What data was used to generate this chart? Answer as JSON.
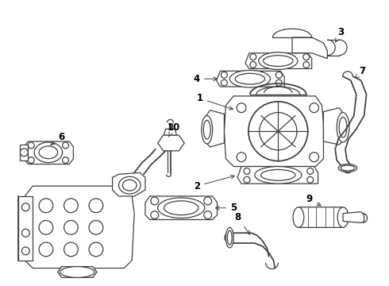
{
  "background_color": "#ffffff",
  "line_color": "#404040",
  "label_color": "#000000",
  "fig_width": 4.9,
  "fig_height": 3.6,
  "dpi": 100,
  "lw": 0.9,
  "label_fontsize": 8.5
}
